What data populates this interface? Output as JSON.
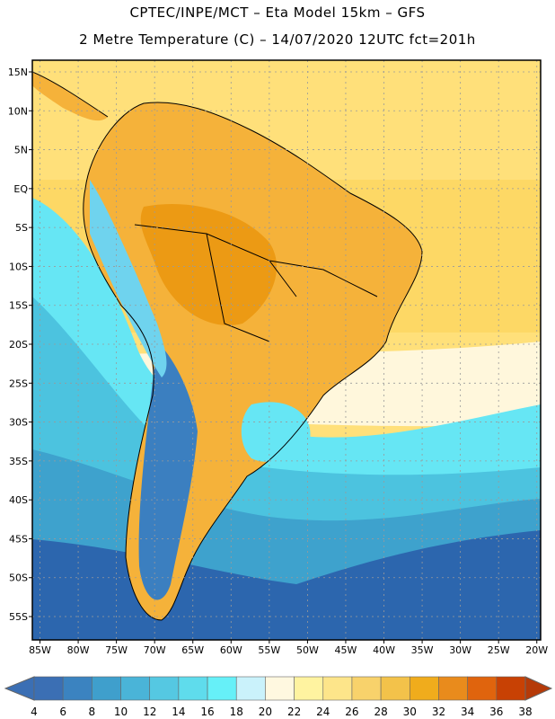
{
  "header": {
    "line1": "CPTEC/INPE/MCT –  Eta Model 15km – GFS",
    "line2": "2 Metre Temperature (C) – 14/07/2020 12UTC fct=201h"
  },
  "axes": {
    "lat_labels": [
      "15N",
      "10N",
      "5N",
      "EQ",
      "5S",
      "10S",
      "15S",
      "20S",
      "25S",
      "30S",
      "35S",
      "40S",
      "45S",
      "50S",
      "55S"
    ],
    "lat_values": [
      15,
      10,
      5,
      0,
      -5,
      -10,
      -15,
      -20,
      -25,
      -30,
      -35,
      -40,
      -45,
      -50,
      -55
    ],
    "lon_labels": [
      "85W",
      "80W",
      "75W",
      "70W",
      "65W",
      "60W",
      "55W",
      "50W",
      "45W",
      "40W",
      "35W",
      "30W",
      "25W",
      "20W"
    ],
    "lon_values": [
      -85,
      -80,
      -75,
      -70,
      -65,
      -60,
      -55,
      -50,
      -45,
      -40,
      -35,
      -30,
      -25,
      -20
    ]
  },
  "colorbar": {
    "labels": [
      "4",
      "6",
      "8",
      "10",
      "12",
      "14",
      "16",
      "18",
      "20",
      "22",
      "24",
      "26",
      "28",
      "30",
      "32",
      "34",
      "36",
      "38"
    ],
    "colors": [
      "#3b6fb4",
      "#3b83c0",
      "#3f9fcc",
      "#4ab4d8",
      "#55c8e2",
      "#5fdcec",
      "#66f0f8",
      "#caf2fb",
      "#fff8e0",
      "#fff3a0",
      "#fde58a",
      "#f8d26b",
      "#f3c24a",
      "#f0ac1c",
      "#e98b1c",
      "#e0640d",
      "#c84104",
      "#b53a08"
    ]
  },
  "colors": {
    "frame": "#000000",
    "grid": "#9a9a9a",
    "ocean_cold": "#2c5fa8",
    "ocean_mid": "#3ea3cf",
    "ocean_warm": "#ffe07a",
    "land_hot": "#f0a02a",
    "andes": "#6fd3ee"
  }
}
